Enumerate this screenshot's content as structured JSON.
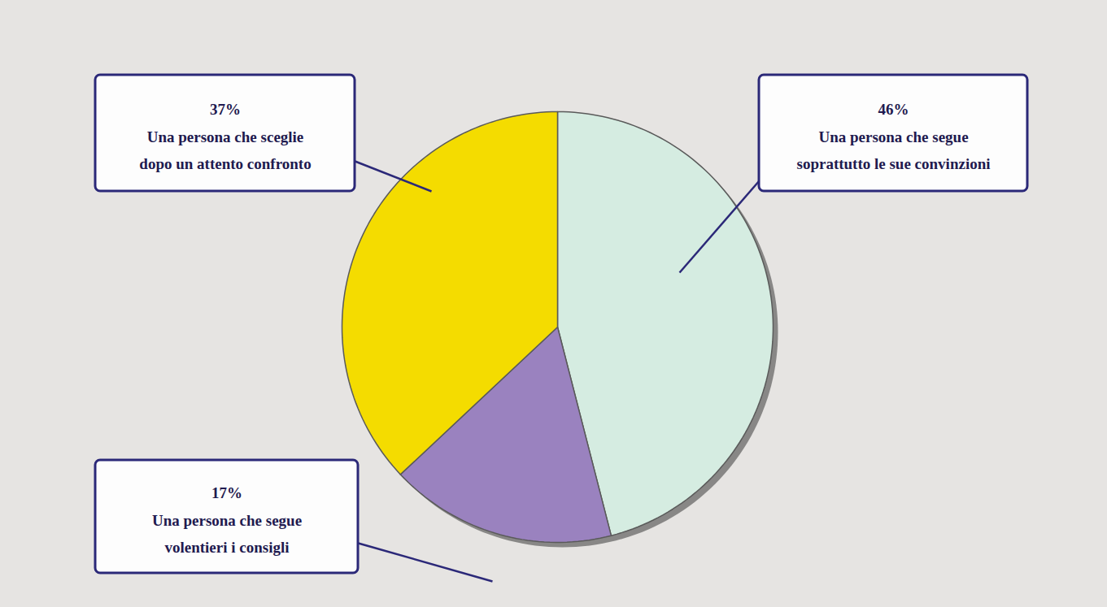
{
  "chart_data": {
    "type": "pie",
    "categories": [
      "Una persona che segue soprattutto le sue convinzioni",
      "Una persona che segue volentieri i consigli",
      "Una persona che sceglie dopo un attento confronto"
    ],
    "values": [
      46,
      17,
      37
    ],
    "value_labels": [
      "46%",
      "17%",
      "37%"
    ],
    "colors": [
      "#d5ece1",
      "#9a82bf",
      "#f4dc00"
    ],
    "data_labels": true
  }
}
